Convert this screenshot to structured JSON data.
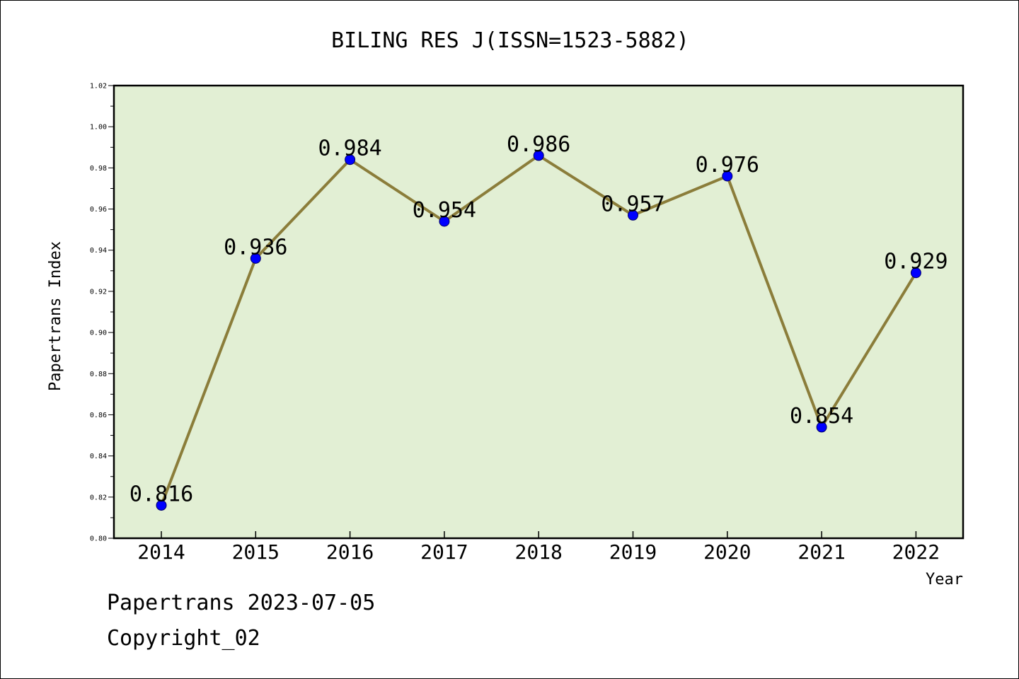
{
  "chart_data": {
    "type": "line",
    "title": "BILING RES J(ISSN=1523-5882)",
    "xlabel": "Year",
    "ylabel": "Papertrans Index",
    "categories": [
      "2014",
      "2015",
      "2016",
      "2017",
      "2018",
      "2019",
      "2020",
      "2021",
      "2022"
    ],
    "series": [
      {
        "values": [
          0.816,
          0.936,
          0.984,
          0.954,
          0.986,
          0.957,
          0.976,
          0.854,
          0.929
        ],
        "labels": [
          "0.816",
          "0.936",
          "0.984",
          "0.954",
          "0.986",
          "0.957",
          "0.976",
          "0.854",
          "0.929"
        ],
        "line_color": "#8b7d3a",
        "marker_color": "#0000ff"
      }
    ],
    "ylim": [
      0.8,
      1.02
    ],
    "y_ticks": [
      "0.80",
      "0.82",
      "0.84",
      "0.86",
      "0.88",
      "0.90",
      "0.92",
      "0.94",
      "0.96",
      "0.98",
      "1.00",
      "1.02"
    ],
    "plot_background": "#e2efd4",
    "grid": false,
    "legend": "none"
  },
  "footer": {
    "line1": "Papertrans 2023-07-05",
    "line2": "Copyright_02"
  }
}
